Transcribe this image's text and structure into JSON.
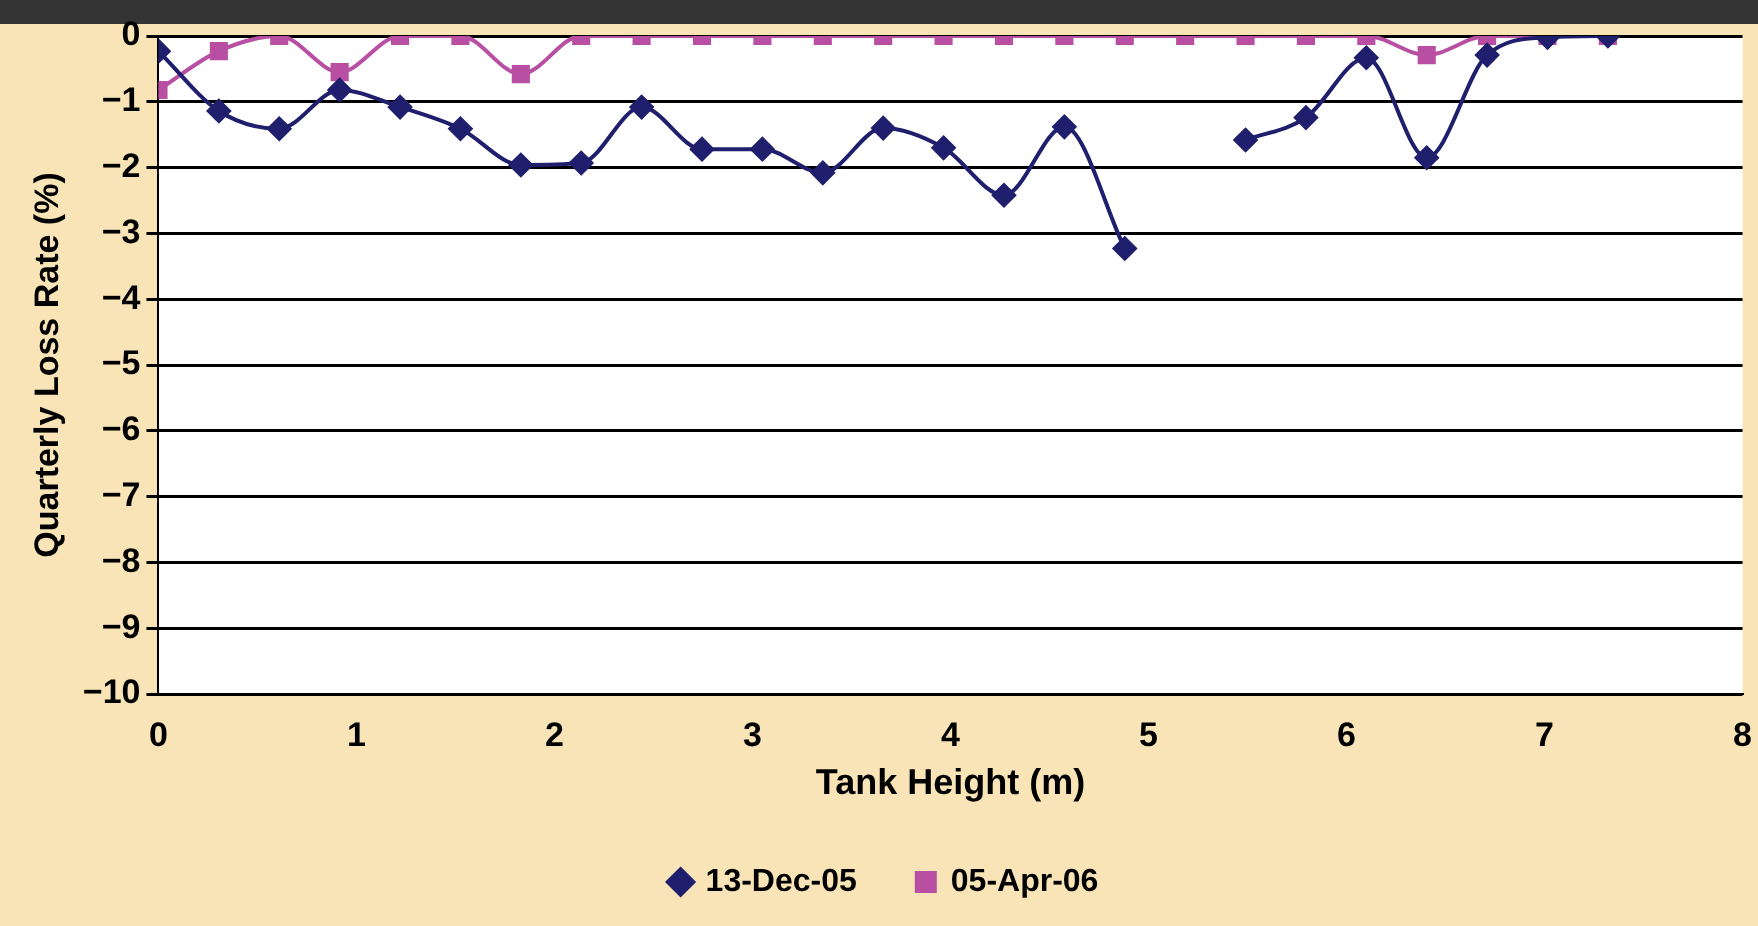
{
  "chart_data": {
    "type": "line",
    "xlabel": "Tank Height (m)",
    "ylabel": "Quarterly Loss Rate (%)",
    "x": [
      0,
      0.305,
      0.61,
      0.915,
      1.22,
      1.525,
      1.83,
      2.135,
      2.44,
      2.745,
      3.05,
      3.355,
      3.66,
      3.965,
      4.27,
      4.575,
      4.88,
      5.185,
      5.49,
      5.795,
      6.1,
      6.405,
      6.71,
      7.015,
      7.32
    ],
    "series": [
      {
        "name": "13-Dec-05",
        "color": "#1f1f6e",
        "marker": "diamond",
        "values": [
          -0.23,
          -1.14,
          -1.41,
          -0.82,
          -1.08,
          -1.41,
          -1.96,
          -1.93,
          -1.08,
          -1.72,
          -1.72,
          -2.08,
          -1.4,
          -1.7,
          -2.42,
          -1.38,
          -3.23,
          null,
          -1.58,
          -1.24,
          -0.33,
          -1.85,
          -0.29,
          -0.02,
          0
        ]
      },
      {
        "name": "05-Apr-06",
        "color": "#b84fa3",
        "marker": "square",
        "values": [
          -0.82,
          -0.23,
          0,
          -0.55,
          0,
          0,
          -0.58,
          0,
          0,
          0,
          0,
          0,
          0,
          0,
          0,
          0,
          0,
          0,
          0,
          0,
          0,
          -0.29,
          0,
          0,
          0
        ]
      }
    ],
    "xlim": [
      0,
      8
    ],
    "xticks": [
      0,
      1,
      2,
      3,
      4,
      5,
      6,
      7,
      8
    ],
    "ylim": [
      -10,
      0
    ],
    "yticks": [
      -10,
      -9,
      -8,
      -7,
      -6,
      -5,
      -4,
      -3,
      -2,
      -1,
      0
    ],
    "grid": "y",
    "legend": "bottom",
    "line_style": "solid"
  }
}
